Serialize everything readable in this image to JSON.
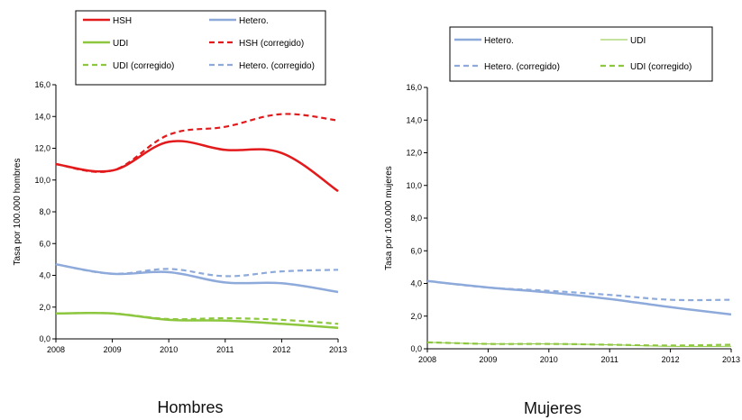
{
  "chart_data": [
    {
      "type": "line",
      "caption": "Hombres",
      "ylabel": "Tasa por 100.000 hombres",
      "x": [
        2008,
        2009,
        2010,
        2011,
        2012,
        2013
      ],
      "x_tick_labels": [
        "2008",
        "2009",
        "2010",
        "2011",
        "2012",
        "2013"
      ],
      "ylim": [
        0,
        16
      ],
      "y_ticks": [
        0,
        2,
        4,
        6,
        8,
        10,
        12,
        14,
        16
      ],
      "y_tick_labels": [
        "0,0",
        "2,0",
        "4,0",
        "6,0",
        "8,0",
        "10,0",
        "12,0",
        "14,0",
        "16,0"
      ],
      "grid": false,
      "legend_position": "top",
      "series": [
        {
          "name": "HSH",
          "color": "#e31a1c",
          "dash": "solid",
          "values": [
            11.0,
            10.6,
            12.4,
            11.9,
            11.7,
            9.3
          ]
        },
        {
          "name": "Hetero.",
          "color": "#8eaadb",
          "dash": "solid",
          "values": [
            4.7,
            4.1,
            4.2,
            3.55,
            3.5,
            2.95
          ]
        },
        {
          "name": "UDI",
          "color": "#8dc63f",
          "dash": "solid",
          "values": [
            1.6,
            1.6,
            1.2,
            1.15,
            0.95,
            0.7
          ]
        },
        {
          "name": "HSH (corregido)",
          "color": "#e31a1c",
          "dash": "dashed",
          "values": [
            11.0,
            10.6,
            12.85,
            13.35,
            14.15,
            13.75
          ]
        },
        {
          "name": "UDI (corregido)",
          "color": "#8dc63f",
          "dash": "dashed",
          "values": [
            1.6,
            1.6,
            1.25,
            1.3,
            1.2,
            0.95
          ]
        },
        {
          "name": "Hetero. (corregido)",
          "color": "#8eaadb",
          "dash": "dashed",
          "values": [
            4.7,
            4.1,
            4.4,
            3.95,
            4.25,
            4.35
          ]
        }
      ]
    },
    {
      "type": "line",
      "caption": "Mujeres",
      "ylabel": "Tasa por 100.000 mujeres",
      "x": [
        2008,
        2009,
        2010,
        2011,
        2012,
        2013
      ],
      "x_tick_labels": [
        "2008",
        "2009",
        "2010",
        "2011",
        "2012",
        "2013"
      ],
      "ylim": [
        0,
        16
      ],
      "y_ticks": [
        0,
        2,
        4,
        6,
        8,
        10,
        12,
        14,
        16
      ],
      "y_tick_labels": [
        "0,0",
        "2,0",
        "4,0",
        "6,0",
        "8,0",
        "10,0",
        "12,0",
        "14,0",
        "16,0"
      ],
      "grid": false,
      "legend_position": "top",
      "series": [
        {
          "name": "Hetero.",
          "color": "#8eaadb",
          "dash": "solid",
          "values": [
            4.15,
            3.75,
            3.45,
            3.05,
            2.55,
            2.1
          ]
        },
        {
          "name": "UDI",
          "color": "#8dc63f",
          "dash": "thin",
          "values": [
            0.4,
            0.3,
            0.3,
            0.25,
            0.15,
            0.15
          ]
        },
        {
          "name": "Hetero. (corregido)",
          "color": "#8eaadb",
          "dash": "dashed",
          "values": [
            4.15,
            3.75,
            3.55,
            3.3,
            3.0,
            3.0
          ]
        },
        {
          "name": "UDI (corregido)",
          "color": "#8dc63f",
          "dash": "dashed",
          "values": [
            0.4,
            0.3,
            0.3,
            0.25,
            0.2,
            0.25
          ]
        }
      ]
    }
  ]
}
